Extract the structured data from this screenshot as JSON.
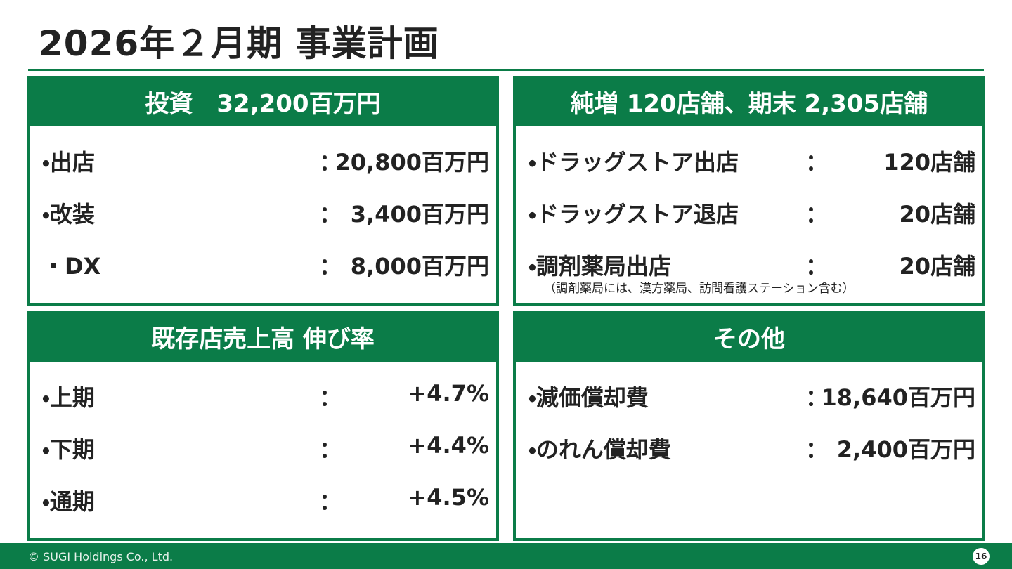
{
  "title": "2026年２月期 事業計画",
  "panels": [
    {
      "header": "投資　32,200百万円",
      "rows": [
        {
          "label": "・出店",
          "colon": "：",
          "value": "20,800百万円"
        },
        {
          "label": "・改装",
          "colon": "：",
          "value": "3,400百万円"
        },
        {
          "label": "・DX",
          "colon": "：",
          "value": "8,000百万円"
        }
      ]
    },
    {
      "header": "純増 120店舗、期末 2,305店舗",
      "rows": [
        {
          "label": "・ドラッグストア出店",
          "colon": "：",
          "value": "120店舗"
        },
        {
          "label": "・ドラッグストア退店",
          "colon": "：",
          "value": "20店舗"
        },
        {
          "label": "・調剤薬局出店",
          "colon": "：",
          "value": "20店舗"
        }
      ],
      "note": "（調剤薬局には、漢方薬局、訪問看護ステーション含む）"
    },
    {
      "header": "既存店売上高 伸び率",
      "rows": [
        {
          "label": "・上期",
          "colon": "：",
          "value": "+4.7%"
        },
        {
          "label": "・下期",
          "colon": "：",
          "value": "+4.4%"
        },
        {
          "label": "・通期",
          "colon": "：",
          "value": "+4.5%"
        }
      ]
    },
    {
      "header": "その他",
      "rows": [
        {
          "label": "・減価償却費",
          "colon": "：",
          "value": "18,640百万円"
        },
        {
          "label": "・のれん償却費",
          "colon": "：",
          "value": "2,400百万円"
        }
      ]
    }
  ],
  "footer": {
    "copyright": "© SUGI Holdings Co., Ltd.",
    "page": "16"
  }
}
